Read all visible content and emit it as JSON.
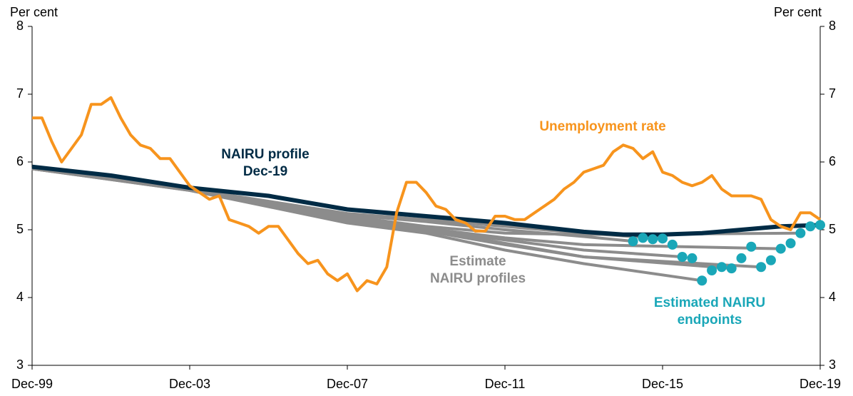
{
  "chart_data": {
    "type": "line",
    "y_label": "Per cent",
    "y2_label": "Per cent",
    "xlim": [
      0,
      80
    ],
    "xticks": [
      {
        "value": 0,
        "label": "Dec-99"
      },
      {
        "value": 16,
        "label": "Dec-03"
      },
      {
        "value": 32,
        "label": "Dec-07"
      },
      {
        "value": 48,
        "label": "Dec-11"
      },
      {
        "value": 64,
        "label": "Dec-15"
      },
      {
        "value": 80,
        "label": "Dec-19"
      }
    ],
    "ylim": [
      3,
      8
    ],
    "yticks": [
      3,
      4,
      5,
      6,
      7,
      8
    ],
    "y2lim": [
      3,
      8
    ],
    "y2ticks": [
      3,
      4,
      5,
      6,
      7,
      8
    ],
    "profiles_color": "#8c8c8c",
    "profiles": [
      {
        "x": [
          0,
          16,
          32,
          40,
          48,
          56,
          61
        ],
        "values": [
          5.9,
          5.6,
          5.22,
          5.12,
          5.0,
          4.9,
          4.83
        ]
      },
      {
        "x": [
          0,
          16,
          32,
          40,
          48,
          56,
          64
        ],
        "values": [
          5.9,
          5.6,
          5.24,
          5.15,
          5.05,
          4.95,
          4.87
        ]
      },
      {
        "x": [
          0,
          16,
          32,
          40,
          48,
          56,
          66
        ],
        "values": [
          5.92,
          5.6,
          5.15,
          5.0,
          4.85,
          4.7,
          4.6
        ]
      },
      {
        "x": [
          0,
          16,
          32,
          40,
          48,
          56,
          68
        ],
        "values": [
          5.9,
          5.58,
          5.1,
          4.95,
          4.7,
          4.5,
          4.25
        ]
      },
      {
        "x": [
          0,
          16,
          32,
          40,
          48,
          56,
          71
        ],
        "values": [
          5.9,
          5.58,
          5.12,
          4.98,
          4.78,
          4.6,
          4.43
        ]
      },
      {
        "x": [
          0,
          16,
          32,
          40,
          48,
          56,
          74
        ],
        "values": [
          5.9,
          5.6,
          5.15,
          5.0,
          4.8,
          4.6,
          4.45
        ]
      },
      {
        "x": [
          0,
          16,
          32,
          40,
          48,
          56,
          76
        ],
        "values": [
          5.92,
          5.6,
          5.18,
          5.02,
          4.88,
          4.78,
          4.72
        ]
      },
      {
        "x": [
          0,
          16,
          32,
          40,
          48,
          56,
          78
        ],
        "values": [
          5.93,
          5.6,
          5.2,
          5.05,
          4.95,
          4.93,
          4.95
        ]
      }
    ],
    "series": [
      {
        "color": "#002b45",
        "x": [
          0,
          8,
          16,
          24,
          32,
          40,
          48,
          56,
          60,
          64,
          68,
          72,
          76,
          80
        ],
        "values": [
          5.93,
          5.8,
          5.62,
          5.5,
          5.3,
          5.2,
          5.1,
          4.97,
          4.93,
          4.93,
          4.95,
          5.0,
          5.05,
          5.07
        ]
      },
      {
        "color": "#f7941d",
        "x": [
          0,
          1,
          2,
          3,
          4,
          5,
          6,
          7,
          8,
          9,
          10,
          11,
          12,
          13,
          14,
          15,
          16,
          17,
          18,
          19,
          20,
          21,
          22,
          23,
          24,
          25,
          26,
          27,
          28,
          29,
          30,
          31,
          32,
          33,
          34,
          35,
          36,
          37,
          38,
          39,
          40,
          41,
          42,
          43,
          44,
          45,
          46,
          47,
          48,
          49,
          50,
          51,
          52,
          53,
          54,
          55,
          56,
          57,
          58,
          59,
          60,
          61,
          62,
          63,
          64,
          65,
          66,
          67,
          68,
          69,
          70,
          71,
          72,
          73,
          74,
          75,
          76,
          77,
          78,
          79,
          80
        ],
        "values": [
          6.65,
          6.65,
          6.3,
          6.0,
          6.2,
          6.4,
          6.85,
          6.85,
          6.95,
          6.65,
          6.4,
          6.25,
          6.2,
          6.05,
          6.05,
          5.85,
          5.65,
          5.55,
          5.45,
          5.5,
          5.15,
          5.1,
          5.05,
          4.95,
          5.05,
          5.05,
          4.85,
          4.65,
          4.5,
          4.55,
          4.35,
          4.25,
          4.35,
          4.1,
          4.25,
          4.2,
          4.45,
          5.25,
          5.7,
          5.7,
          5.55,
          5.35,
          5.3,
          5.15,
          5.1,
          4.98,
          4.98,
          5.2,
          5.2,
          5.15,
          5.15,
          5.25,
          5.35,
          5.45,
          5.6,
          5.7,
          5.85,
          5.9,
          5.95,
          6.15,
          6.25,
          6.2,
          6.05,
          6.15,
          5.85,
          5.8,
          5.7,
          5.65,
          5.7,
          5.8,
          5.6,
          5.5,
          5.5,
          5.5,
          5.45,
          5.15,
          5.05,
          5.0,
          5.25,
          5.25,
          5.15
        ]
      }
    ],
    "endpoints": {
      "color": "#1aa7b8",
      "x": [
        61,
        62,
        63,
        64,
        65,
        66,
        67,
        68,
        69,
        70,
        71,
        72,
        73,
        74,
        75,
        76,
        77,
        78,
        79,
        80
      ],
      "values": [
        4.83,
        4.88,
        4.86,
        4.87,
        4.78,
        4.6,
        4.58,
        4.25,
        4.4,
        4.45,
        4.43,
        4.58,
        4.75,
        4.45,
        4.55,
        4.72,
        4.8,
        4.95,
        5.05,
        5.07
      ]
    },
    "annotations": [
      {
        "lines": [
          "Unemployment rate"
        ],
        "color": "#f7941d"
      },
      {
        "lines": [
          "NAIRU profile",
          "Dec-19"
        ],
        "color": "#002b45"
      },
      {
        "lines": [
          "Estimate",
          "NAIRU profiles"
        ],
        "color": "#8c8c8c"
      },
      {
        "lines": [
          "Estimated NAIRU",
          "endpoints"
        ],
        "color": "#1aa7b8"
      }
    ]
  }
}
